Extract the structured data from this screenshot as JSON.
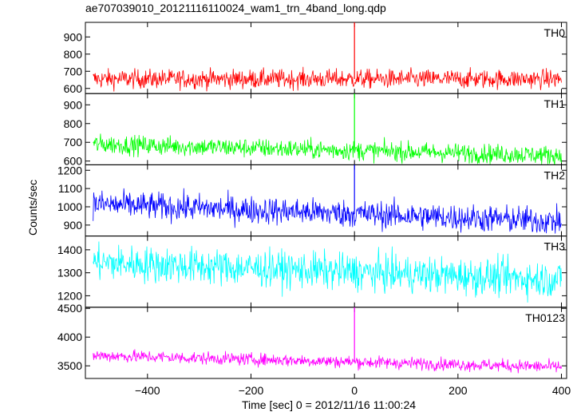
{
  "title": "ae707039010_20121116110024_wam1_trn_4band_long.qdp",
  "ylabel": "Counts/sec",
  "xlabel": "Time [sec] 0 = 2012/11/16 11:00:24",
  "chart_data": {
    "type": "line",
    "title": "ae707039010_20121116110024_wam1_trn_4band_long.qdp",
    "xlabel": "Time [sec] 0 = 2012/11/16 11:00:24",
    "ylabel": "Counts/sec",
    "xlim": [
      -520,
      410
    ],
    "x_ticks": [
      -400,
      -200,
      0,
      200,
      400
    ],
    "x_tick_labels": [
      "−400",
      "−200",
      "0",
      "200",
      "400"
    ],
    "x_range_data": [
      -505,
      400
    ],
    "grid": false,
    "panels": [
      {
        "name": "TH0",
        "color": "#ff0000",
        "ylim": [
          570,
          985
        ],
        "yticks": [
          600,
          700,
          800,
          900
        ],
        "baseline_start": 655,
        "baseline_end": 655,
        "noise": 28,
        "spike_x": 0,
        "spike_peak": 985
      },
      {
        "name": "TH1",
        "color": "#00ff00",
        "ylim": [
          580,
          960
        ],
        "yticks": [
          600,
          700,
          800,
          900
        ],
        "baseline_start": 690,
        "baseline_end": 630,
        "noise": 26,
        "spike_x": 0,
        "spike_peak": 960
      },
      {
        "name": "TH2",
        "color": "#0000ff",
        "ylim": [
          840,
          1230
        ],
        "yticks": [
          900,
          1000,
          1100,
          1200
        ],
        "baseline_start": 1015,
        "baseline_end": 920,
        "noise": 38,
        "spike_x": 0,
        "spike_peak": 1230
      },
      {
        "name": "TH3",
        "color": "#00ffff",
        "ylim": [
          1150,
          1460
        ],
        "yticks": [
          1200,
          1300,
          1400
        ],
        "baseline_start": 1345,
        "baseline_end": 1270,
        "noise": 40,
        "spike_x": 0,
        "spike_peak": 1360
      },
      {
        "name": "TH0123",
        "color": "#ff00ff",
        "ylim": [
          3280,
          4520
        ],
        "yticks": [
          3500,
          4000,
          4500
        ],
        "baseline_start": 3680,
        "baseline_end": 3480,
        "noise": 55,
        "spike_x": 0,
        "spike_peak": 4520
      }
    ]
  }
}
